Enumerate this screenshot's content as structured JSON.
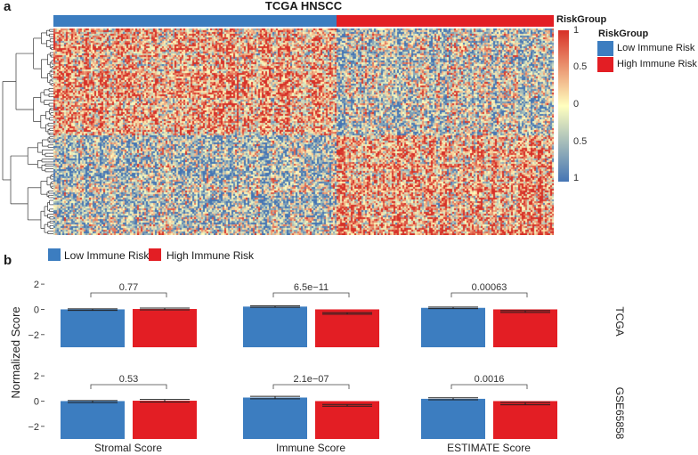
{
  "colors": {
    "low_risk": "#3C7DC0",
    "high_risk": "#E31E24",
    "heatmap_low": "#4575B4",
    "heatmap_mid": "#FFFFBF",
    "heatmap_high": "#D73027",
    "dendrogram": "#333333"
  },
  "panel_a": {
    "letter": "a",
    "title": "TCGA HNSCC",
    "annotation_label": "RiskGroup",
    "legend_title": "RiskGroup",
    "legend_items": [
      "Low Immune Risk",
      "High Immune Risk"
    ],
    "colorbar_ticks": [
      "1",
      "0.5",
      "0",
      "0.5",
      "1"
    ]
  },
  "panel_b": {
    "letter": "b",
    "legend_items": [
      "Low Immune Risk",
      "High Immune Risk"
    ]
  },
  "chart_data": [
    {
      "type": "heatmap",
      "title": "TCGA HNSCC",
      "annotation_groups": [
        "Low Immune Risk",
        "High Immune Risk"
      ],
      "annotation_split_fraction": 0.565,
      "color_scale": {
        "min": -1,
        "max": 1,
        "low": "#4575B4",
        "mid": "#FFFFBF",
        "high": "#D73027"
      },
      "row_blocks": [
        {
          "rows": 0.52,
          "low_group_bias": 0.35,
          "high_group_bias": -0.25
        },
        {
          "rows": 0.48,
          "low_group_bias": -0.3,
          "high_group_bias": 0.4
        }
      ]
    },
    {
      "type": "bar",
      "ylabel": "Normalized Score",
      "ylim": [
        -3,
        2.5
      ],
      "yticks": [
        2,
        0,
        -2
      ],
      "categories": [
        "Stromal Score",
        "Immune Score",
        "ESTIMATE Score"
      ],
      "groups": [
        "Low Immune Risk",
        "High Immune Risk"
      ],
      "facets": [
        {
          "name": "TCGA",
          "series": [
            {
              "name": "Low Immune Risk",
              "values": [
                -0.02,
                0.22,
                0.12
              ],
              "errors": [
                0.06,
                0.06,
                0.06
              ]
            },
            {
              "name": "High Immune Risk",
              "values": [
                0.03,
                -0.32,
                -0.17
              ],
              "errors": [
                0.07,
                0.06,
                0.07
              ]
            }
          ],
          "pvalues": [
            "0.77",
            "6.5e−11",
            "0.00063"
          ]
        },
        {
          "name": "GSE65858",
          "series": [
            {
              "name": "Low Immune Risk",
              "values": [
                -0.04,
                0.28,
                0.18
              ],
              "errors": [
                0.08,
                0.1,
                0.08
              ]
            },
            {
              "name": "High Immune Risk",
              "values": [
                0.03,
                -0.34,
                -0.2
              ],
              "errors": [
                0.1,
                0.07,
                0.09
              ]
            }
          ],
          "pvalues": [
            "0.53",
            "2.1e−07",
            "0.0016"
          ]
        }
      ]
    }
  ]
}
